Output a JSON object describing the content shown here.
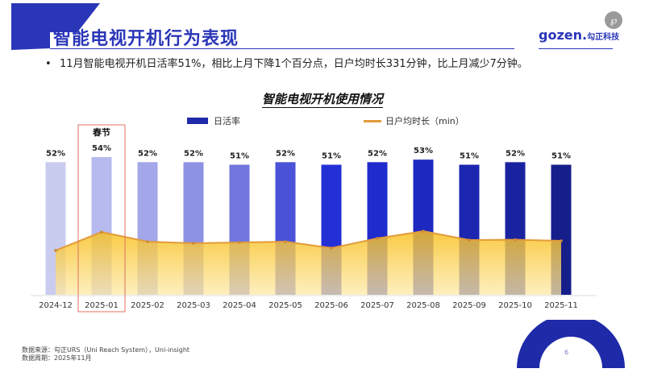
{
  "header": {
    "title": "智能电视开机行为表现",
    "logo_text": "gozen.",
    "logo_cn": "勾正科技",
    "share_icon": "mini-program-icon"
  },
  "summary": {
    "bullet": "•",
    "text": "11月智能电视开机日活率51%，相比上月下降1个百分点，日户均时长331分钟，比上月减少7分钟。"
  },
  "chart_data": {
    "type": "bar+area",
    "title": "智能电视开机使用情况",
    "categories": [
      "2024-12",
      "2025-01",
      "2025-02",
      "2025-03",
      "2025-04",
      "2025-05",
      "2025-06",
      "2025-07",
      "2025-08",
      "2025-09",
      "2025-10",
      "2025-11"
    ],
    "series": [
      {
        "name": "日活率",
        "type": "bar",
        "unit": "%",
        "values": [
          52,
          54,
          52,
          52,
          51,
          52,
          51,
          52,
          53,
          51,
          52,
          51
        ],
        "labels": [
          "52%",
          "54%",
          "52%",
          "52%",
          "51%",
          "52%",
          "51%",
          "52%",
          "53%",
          "51%",
          "52%",
          "51%"
        ],
        "colors": [
          "#c9cbef",
          "#b7baee",
          "#a3a6e8",
          "#8e92e4",
          "#7277de",
          "#4a52d8",
          "#2430d6",
          "#1f2bcc",
          "#1d28c0",
          "#1c26b0",
          "#1a239f",
          "#161e8a"
        ]
      },
      {
        "name": "日户均时长（min）",
        "type": "area",
        "unit": "min",
        "values": [
          272,
          385,
          326,
          316,
          321,
          326,
          287,
          346,
          390,
          336,
          338,
          331
        ],
        "color": "#e39b3a",
        "fill_top": "#f8bf1c",
        "fill_bottom": "#fde9a8",
        "labelled": false
      }
    ],
    "annotation": {
      "category": "2025-01",
      "text": "春节",
      "highlight_color": "#e07060"
    },
    "legend": [
      "日活率",
      "日户均时长（min）"
    ],
    "legend_position": "top",
    "bar_ylim": [
      0,
      60
    ],
    "line_ylim": [
      0,
      420
    ],
    "grid": false
  },
  "footer": {
    "source": "数据来源：勾正URS（Uni Reach System），Uni-insight",
    "period": "数据周期：2025年11月"
  },
  "page": {
    "number": "6",
    "accent": "#1e2aa8"
  }
}
